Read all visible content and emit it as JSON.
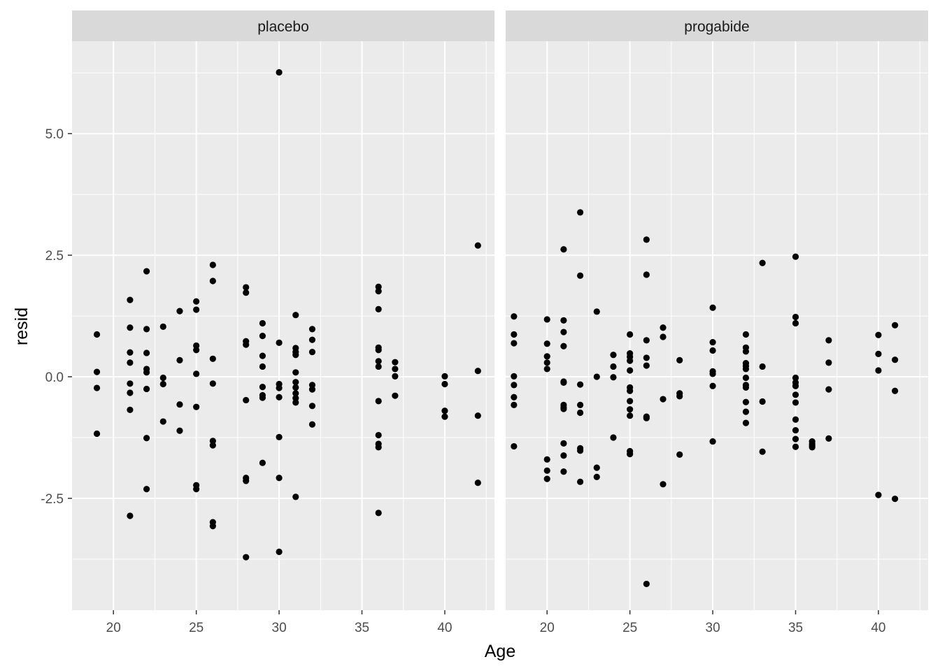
{
  "chart_data": {
    "type": "scatter",
    "xlabel": "Age",
    "ylabel": "resid",
    "xlim": [
      17.5,
      43.0
    ],
    "ylim": [
      -4.8,
      6.9
    ],
    "x_ticks": [
      20,
      25,
      30,
      35,
      40
    ],
    "y_ticks": [
      -2.5,
      0.0,
      2.5,
      5.0
    ],
    "y_tick_labels": [
      "-2.5",
      "0.0",
      "2.5",
      "5.0"
    ],
    "grid": true,
    "point_color": "#000000",
    "panel_background": "#ebebeb",
    "strip_background": "#d9d9d9",
    "facets": [
      {
        "label": "placebo",
        "points": [
          [
            19,
            0.87
          ],
          [
            19,
            0.1
          ],
          [
            19,
            -0.23
          ],
          [
            19,
            -1.17
          ],
          [
            21,
            1.58
          ],
          [
            21,
            1.01
          ],
          [
            21,
            0.5
          ],
          [
            21,
            0.29
          ],
          [
            21,
            -0.14
          ],
          [
            21,
            -0.33
          ],
          [
            21,
            -0.68
          ],
          [
            21,
            -2.86
          ],
          [
            22,
            2.17
          ],
          [
            22,
            0.98
          ],
          [
            22,
            0.49
          ],
          [
            22,
            0.16
          ],
          [
            22,
            0.09
          ],
          [
            22,
            -0.25
          ],
          [
            22,
            -1.26
          ],
          [
            22,
            -2.31
          ],
          [
            23,
            1.03
          ],
          [
            23,
            -0.02
          ],
          [
            23,
            -0.15
          ],
          [
            23,
            -0.92
          ],
          [
            24,
            1.35
          ],
          [
            24,
            0.34
          ],
          [
            24,
            -0.57
          ],
          [
            24,
            -1.11
          ],
          [
            25,
            1.55
          ],
          [
            25,
            1.38
          ],
          [
            25,
            0.64
          ],
          [
            25,
            0.55
          ],
          [
            25,
            0.06
          ],
          [
            25,
            -0.62
          ],
          [
            25,
            -2.23
          ],
          [
            25,
            -2.31
          ],
          [
            26,
            2.3
          ],
          [
            26,
            1.97
          ],
          [
            26,
            0.37
          ],
          [
            26,
            -0.14
          ],
          [
            26,
            -1.32
          ],
          [
            26,
            -1.41
          ],
          [
            26,
            -2.99
          ],
          [
            26,
            -3.07
          ],
          [
            28,
            1.84
          ],
          [
            28,
            1.73
          ],
          [
            28,
            0.73
          ],
          [
            28,
            0.66
          ],
          [
            28,
            -0.48
          ],
          [
            28,
            -2.08
          ],
          [
            28,
            -2.14
          ],
          [
            28,
            -3.71
          ],
          [
            29,
            1.1
          ],
          [
            29,
            0.84
          ],
          [
            29,
            0.43
          ],
          [
            29,
            0.21
          ],
          [
            29,
            -0.21
          ],
          [
            29,
            -0.38
          ],
          [
            29,
            -0.43
          ],
          [
            29,
            -1.77
          ],
          [
            30,
            6.26
          ],
          [
            30,
            0.7
          ],
          [
            30,
            -0.15
          ],
          [
            30,
            -0.23
          ],
          [
            30,
            -0.42
          ],
          [
            30,
            -1.24
          ],
          [
            30,
            -2.08
          ],
          [
            30,
            -3.6
          ],
          [
            31,
            1.27
          ],
          [
            31,
            0.59
          ],
          [
            31,
            0.51
          ],
          [
            31,
            0.45
          ],
          [
            31,
            0.09
          ],
          [
            31,
            -0.11
          ],
          [
            31,
            -0.22
          ],
          [
            31,
            -0.34
          ],
          [
            31,
            -0.44
          ],
          [
            31,
            -0.53
          ],
          [
            31,
            -2.47
          ],
          [
            32,
            0.98
          ],
          [
            32,
            0.76
          ],
          [
            32,
            0.51
          ],
          [
            32,
            -0.17
          ],
          [
            32,
            -0.26
          ],
          [
            32,
            -0.6
          ],
          [
            32,
            -0.98
          ],
          [
            36,
            1.85
          ],
          [
            36,
            1.76
          ],
          [
            36,
            1.39
          ],
          [
            36,
            0.6
          ],
          [
            36,
            0.55
          ],
          [
            36,
            0.32
          ],
          [
            36,
            0.21
          ],
          [
            36,
            -0.5
          ],
          [
            36,
            -1.2
          ],
          [
            36,
            -1.38
          ],
          [
            36,
            -1.45
          ],
          [
            36,
            -2.8
          ],
          [
            37,
            0.3
          ],
          [
            37,
            0.16
          ],
          [
            37,
            0.01
          ],
          [
            37,
            -0.39
          ],
          [
            40,
            0.01
          ],
          [
            40,
            -0.15
          ],
          [
            40,
            -0.7
          ],
          [
            40,
            -0.82
          ],
          [
            42,
            2.7
          ],
          [
            42,
            0.12
          ],
          [
            42,
            -0.8
          ],
          [
            42,
            -2.18
          ]
        ]
      },
      {
        "label": "progabide",
        "points": [
          [
            18,
            1.24
          ],
          [
            18,
            0.87
          ],
          [
            18,
            0.69
          ],
          [
            18,
            0.01
          ],
          [
            18,
            -0.17
          ],
          [
            18,
            -0.42
          ],
          [
            18,
            -0.58
          ],
          [
            18,
            -1.43
          ],
          [
            20,
            1.18
          ],
          [
            20,
            0.68
          ],
          [
            20,
            0.42
          ],
          [
            20,
            0.29
          ],
          [
            20,
            0.16
          ],
          [
            20,
            -1.7
          ],
          [
            20,
            -1.93
          ],
          [
            20,
            -2.1
          ],
          [
            21,
            2.62
          ],
          [
            21,
            1.16
          ],
          [
            21,
            0.92
          ],
          [
            21,
            0.63
          ],
          [
            21,
            -0.1
          ],
          [
            21,
            -0.12
          ],
          [
            21,
            -0.58
          ],
          [
            21,
            -0.63
          ],
          [
            21,
            -0.66
          ],
          [
            21,
            -1.37
          ],
          [
            21,
            -1.62
          ],
          [
            21,
            -1.95
          ],
          [
            22,
            3.38
          ],
          [
            22,
            2.08
          ],
          [
            22,
            -0.16
          ],
          [
            22,
            -0.58
          ],
          [
            22,
            -0.74
          ],
          [
            22,
            -1.47
          ],
          [
            22,
            -1.52
          ],
          [
            22,
            -2.16
          ],
          [
            23,
            1.34
          ],
          [
            23,
            0.0
          ],
          [
            23,
            -1.87
          ],
          [
            23,
            -2.06
          ],
          [
            24,
            0.45
          ],
          [
            24,
            0.21
          ],
          [
            24,
            -0.01
          ],
          [
            24,
            -1.25
          ],
          [
            25,
            0.87
          ],
          [
            25,
            0.48
          ],
          [
            25,
            0.41
          ],
          [
            25,
            0.33
          ],
          [
            25,
            0.13
          ],
          [
            25,
            -0.22
          ],
          [
            25,
            -0.29
          ],
          [
            25,
            -0.5
          ],
          [
            25,
            -0.67
          ],
          [
            25,
            -0.8
          ],
          [
            25,
            -1.53
          ],
          [
            25,
            -1.59
          ],
          [
            26,
            2.82
          ],
          [
            26,
            2.1
          ],
          [
            26,
            0.75
          ],
          [
            26,
            0.39
          ],
          [
            26,
            0.23
          ],
          [
            26,
            -0.82
          ],
          [
            26,
            -0.85
          ],
          [
            26,
            -4.26
          ],
          [
            27,
            1.01
          ],
          [
            27,
            0.82
          ],
          [
            27,
            -0.46
          ],
          [
            27,
            -2.21
          ],
          [
            28,
            0.34
          ],
          [
            28,
            -0.34
          ],
          [
            28,
            -0.4
          ],
          [
            28,
            -1.6
          ],
          [
            30,
            1.42
          ],
          [
            30,
            0.71
          ],
          [
            30,
            0.54
          ],
          [
            30,
            0.11
          ],
          [
            30,
            0.06
          ],
          [
            30,
            -0.19
          ],
          [
            30,
            -1.33
          ],
          [
            32,
            0.87
          ],
          [
            32,
            0.6
          ],
          [
            32,
            0.52
          ],
          [
            32,
            0.28
          ],
          [
            32,
            0.22
          ],
          [
            32,
            0.16
          ],
          [
            32,
            -0.02
          ],
          [
            32,
            -0.17
          ],
          [
            32,
            -0.22
          ],
          [
            32,
            -0.52
          ],
          [
            32,
            -0.72
          ],
          [
            32,
            -0.95
          ],
          [
            33,
            2.34
          ],
          [
            33,
            0.21
          ],
          [
            33,
            -0.51
          ],
          [
            33,
            -1.54
          ],
          [
            35,
            2.47
          ],
          [
            35,
            1.23
          ],
          [
            35,
            1.1
          ],
          [
            35,
            -0.02
          ],
          [
            35,
            -0.12
          ],
          [
            35,
            -0.19
          ],
          [
            35,
            -0.37
          ],
          [
            35,
            -0.53
          ],
          [
            35,
            -0.88
          ],
          [
            35,
            -1.1
          ],
          [
            35,
            -1.28
          ],
          [
            35,
            -1.44
          ],
          [
            36,
            -1.33
          ],
          [
            36,
            -1.38
          ],
          [
            36,
            -1.42
          ],
          [
            36,
            -1.45
          ],
          [
            37,
            0.75
          ],
          [
            37,
            0.29
          ],
          [
            37,
            -0.26
          ],
          [
            37,
            -1.27
          ],
          [
            40,
            0.86
          ],
          [
            40,
            0.47
          ],
          [
            40,
            0.13
          ],
          [
            40,
            -2.43
          ],
          [
            41,
            1.06
          ],
          [
            41,
            0.35
          ],
          [
            41,
            -0.29
          ],
          [
            41,
            -2.51
          ]
        ]
      }
    ]
  }
}
